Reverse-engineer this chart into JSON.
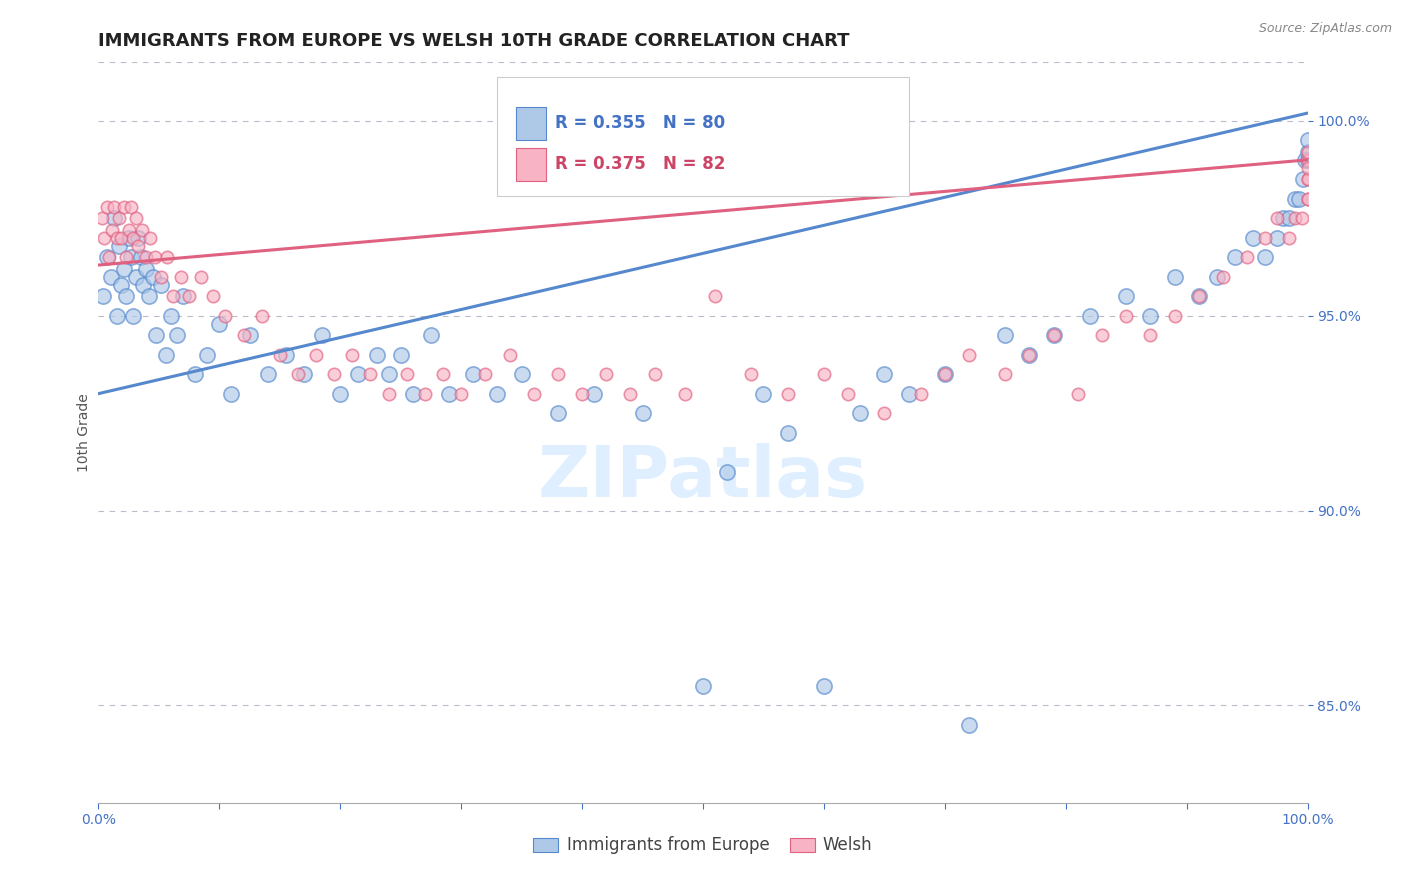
{
  "title": "IMMIGRANTS FROM EUROPE VS WELSH 10TH GRADE CORRELATION CHART",
  "source_text": "Source: ZipAtlas.com",
  "ylabel": "10th Grade",
  "legend_blue_label": "Immigrants from Europe",
  "legend_pink_label": "Welsh",
  "legend_blue_r": "R = 0.355",
  "legend_blue_n": "N = 80",
  "legend_pink_r": "R = 0.375",
  "legend_pink_n": "N = 82",
  "blue_fill": "#aec9e8",
  "pink_fill": "#f8b4c4",
  "blue_edge": "#5588cc",
  "pink_edge": "#e06080",
  "right_ytick_color": "#4472C4",
  "xtick_color": "#4472C4",
  "legend_r_color": "#4472C4",
  "legend_n_color": "#4472C4",
  "legend_blue_r_color": "#4472C4",
  "legend_pink_r_color": "#cc4466",
  "background_color": "#ffffff",
  "watermark_text": "ZIPatlas",
  "watermark_color": "#ddeeff",
  "xlim": [
    0.0,
    100.0
  ],
  "ylim": [
    82.5,
    101.5
  ],
  "right_yticks": [
    85.0,
    90.0,
    95.0,
    100.0
  ],
  "blue_trend_y_start": 93.0,
  "blue_trend_y_end": 100.2,
  "pink_trend_y_start": 96.3,
  "pink_trend_y_end": 99.0,
  "title_fontsize": 13,
  "axis_label_fontsize": 10,
  "tick_fontsize": 10,
  "legend_fontsize": 12,
  "dot_size_blue": 120,
  "dot_size_pink": 80,
  "blue_scatter_x": [
    0.4,
    0.7,
    1.0,
    1.3,
    1.5,
    1.7,
    1.9,
    2.1,
    2.3,
    2.5,
    2.7,
    2.9,
    3.1,
    3.3,
    3.5,
    3.7,
    3.9,
    4.2,
    4.5,
    4.8,
    5.2,
    5.6,
    6.0,
    6.5,
    7.0,
    8.0,
    9.0,
    10.0,
    11.0,
    12.5,
    14.0,
    15.5,
    17.0,
    18.5,
    20.0,
    21.5,
    23.0,
    24.0,
    25.0,
    26.0,
    27.5,
    29.0,
    31.0,
    33.0,
    35.0,
    38.0,
    41.0,
    45.0,
    50.0,
    52.0,
    55.0,
    57.0,
    60.0,
    63.0,
    65.0,
    67.0,
    70.0,
    72.0,
    75.0,
    77.0,
    79.0,
    82.0,
    85.0,
    87.0,
    89.0,
    91.0,
    92.5,
    94.0,
    95.5,
    96.5,
    97.5,
    98.0,
    98.5,
    99.0,
    99.3,
    99.6,
    99.8,
    100.0,
    100.0,
    100.0
  ],
  "blue_scatter_y": [
    95.5,
    96.5,
    96.0,
    97.5,
    95.0,
    96.8,
    95.8,
    96.2,
    95.5,
    97.0,
    96.5,
    95.0,
    96.0,
    97.0,
    96.5,
    95.8,
    96.2,
    95.5,
    96.0,
    94.5,
    95.8,
    94.0,
    95.0,
    94.5,
    95.5,
    93.5,
    94.0,
    94.8,
    93.0,
    94.5,
    93.5,
    94.0,
    93.5,
    94.5,
    93.0,
    93.5,
    94.0,
    93.5,
    94.0,
    93.0,
    94.5,
    93.0,
    93.5,
    93.0,
    93.5,
    92.5,
    93.0,
    92.5,
    85.5,
    91.0,
    93.0,
    92.0,
    85.5,
    92.5,
    93.5,
    93.0,
    93.5,
    84.5,
    94.5,
    94.0,
    94.5,
    95.0,
    95.5,
    95.0,
    96.0,
    95.5,
    96.0,
    96.5,
    97.0,
    96.5,
    97.0,
    97.5,
    97.5,
    98.0,
    98.0,
    98.5,
    99.0,
    99.0,
    99.2,
    99.5
  ],
  "pink_scatter_x": [
    0.3,
    0.5,
    0.7,
    0.9,
    1.1,
    1.3,
    1.5,
    1.7,
    1.9,
    2.1,
    2.3,
    2.5,
    2.7,
    2.9,
    3.1,
    3.3,
    3.6,
    3.9,
    4.3,
    4.7,
    5.2,
    5.7,
    6.2,
    6.8,
    7.5,
    8.5,
    9.5,
    10.5,
    12.0,
    13.5,
    15.0,
    16.5,
    18.0,
    19.5,
    21.0,
    22.5,
    24.0,
    25.5,
    27.0,
    28.5,
    30.0,
    32.0,
    34.0,
    36.0,
    38.0,
    40.0,
    42.0,
    44.0,
    46.0,
    48.5,
    51.0,
    54.0,
    57.0,
    60.0,
    62.0,
    65.0,
    68.0,
    70.0,
    72.0,
    75.0,
    77.0,
    79.0,
    81.0,
    83.0,
    85.0,
    87.0,
    89.0,
    91.0,
    93.0,
    95.0,
    96.5,
    97.5,
    98.5,
    99.0,
    99.5,
    100.0,
    100.0,
    100.0,
    100.0,
    100.0,
    100.0,
    100.0
  ],
  "pink_scatter_y": [
    97.5,
    97.0,
    97.8,
    96.5,
    97.2,
    97.8,
    97.0,
    97.5,
    97.0,
    97.8,
    96.5,
    97.2,
    97.8,
    97.0,
    97.5,
    96.8,
    97.2,
    96.5,
    97.0,
    96.5,
    96.0,
    96.5,
    95.5,
    96.0,
    95.5,
    96.0,
    95.5,
    95.0,
    94.5,
    95.0,
    94.0,
    93.5,
    94.0,
    93.5,
    94.0,
    93.5,
    93.0,
    93.5,
    93.0,
    93.5,
    93.0,
    93.5,
    94.0,
    93.0,
    93.5,
    93.0,
    93.5,
    93.0,
    93.5,
    93.0,
    95.5,
    93.5,
    93.0,
    93.5,
    93.0,
    92.5,
    93.0,
    93.5,
    94.0,
    93.5,
    94.0,
    94.5,
    93.0,
    94.5,
    95.0,
    94.5,
    95.0,
    95.5,
    96.0,
    96.5,
    97.0,
    97.5,
    97.0,
    97.5,
    97.5,
    98.0,
    98.5,
    98.0,
    98.5,
    99.0,
    99.2,
    98.8
  ]
}
